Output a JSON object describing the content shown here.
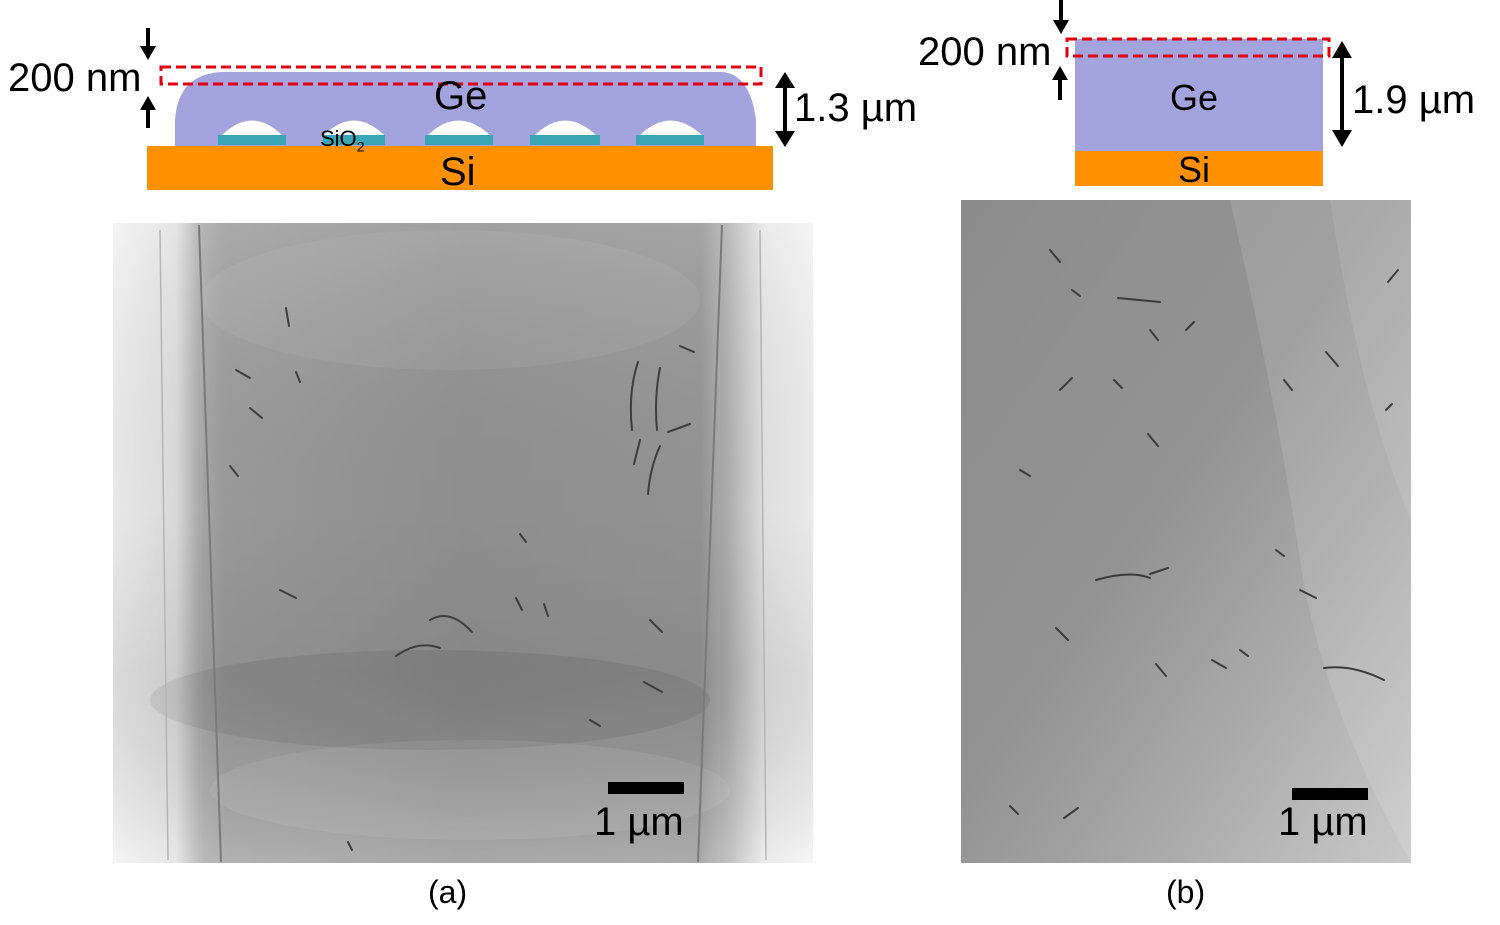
{
  "panel_a": {
    "thickness_top": "200 nm",
    "material_ge": "Ge",
    "material_oxide": "SiO",
    "oxide_subscript": "2",
    "material_si": "Si",
    "total_thickness": "1.3 µm",
    "scale_bar": "1 µm",
    "panel_label": "(a)"
  },
  "panel_b": {
    "thickness_top": "200 nm",
    "material_ge": "Ge",
    "material_si": "Si",
    "total_thickness": "1.9 µm",
    "scale_bar": "1 µm",
    "panel_label": "(b)"
  },
  "colors": {
    "ge": "#a3a3de",
    "si": "#ff9000",
    "oxide": "#3aa6b5",
    "dashed_box": "#e0000e"
  }
}
